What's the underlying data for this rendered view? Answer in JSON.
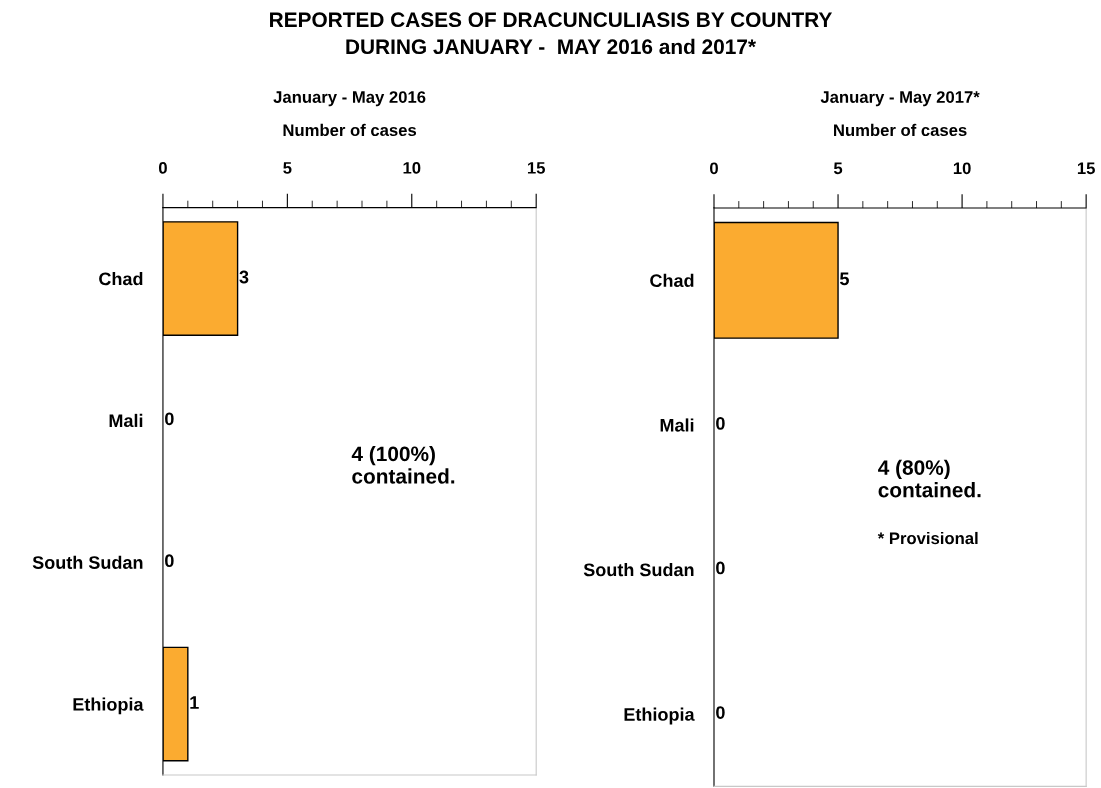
{
  "chart_data": [
    {
      "type": "bar",
      "orientation": "horizontal",
      "title": "REPORTED CASES OF DRACUNCULIASIS BY COUNTRY\nDURING JANUARY -  MAY 2016 and 2017*",
      "subtitle": "January - May 2016",
      "xlabel": "Number of cases",
      "categories": [
        "Chad",
        "Mali",
        "South Sudan",
        "Ethiopia"
      ],
      "values": [
        3,
        0,
        0,
        1
      ],
      "color": "#fbab30",
      "xlim": [
        0,
        15
      ],
      "xticks": [
        0,
        5,
        10,
        15
      ],
      "data_labels": true,
      "grid": false,
      "legend": false,
      "annotations": [
        "4 (100%)\ncontained."
      ]
    },
    {
      "type": "bar",
      "orientation": "horizontal",
      "subtitle": "January - May 2017*",
      "xlabel": "Number of cases",
      "categories": [
        "Chad",
        "Mali",
        "South Sudan",
        "Ethiopia"
      ],
      "values": [
        5,
        0,
        0,
        0
      ],
      "color": "#fbab30",
      "xlim": [
        0,
        15
      ],
      "xticks": [
        0,
        5,
        10,
        15
      ],
      "data_labels": true,
      "grid": false,
      "legend": false,
      "annotations": [
        "4 (80%)\ncontained.",
        "* Provisional"
      ]
    }
  ]
}
